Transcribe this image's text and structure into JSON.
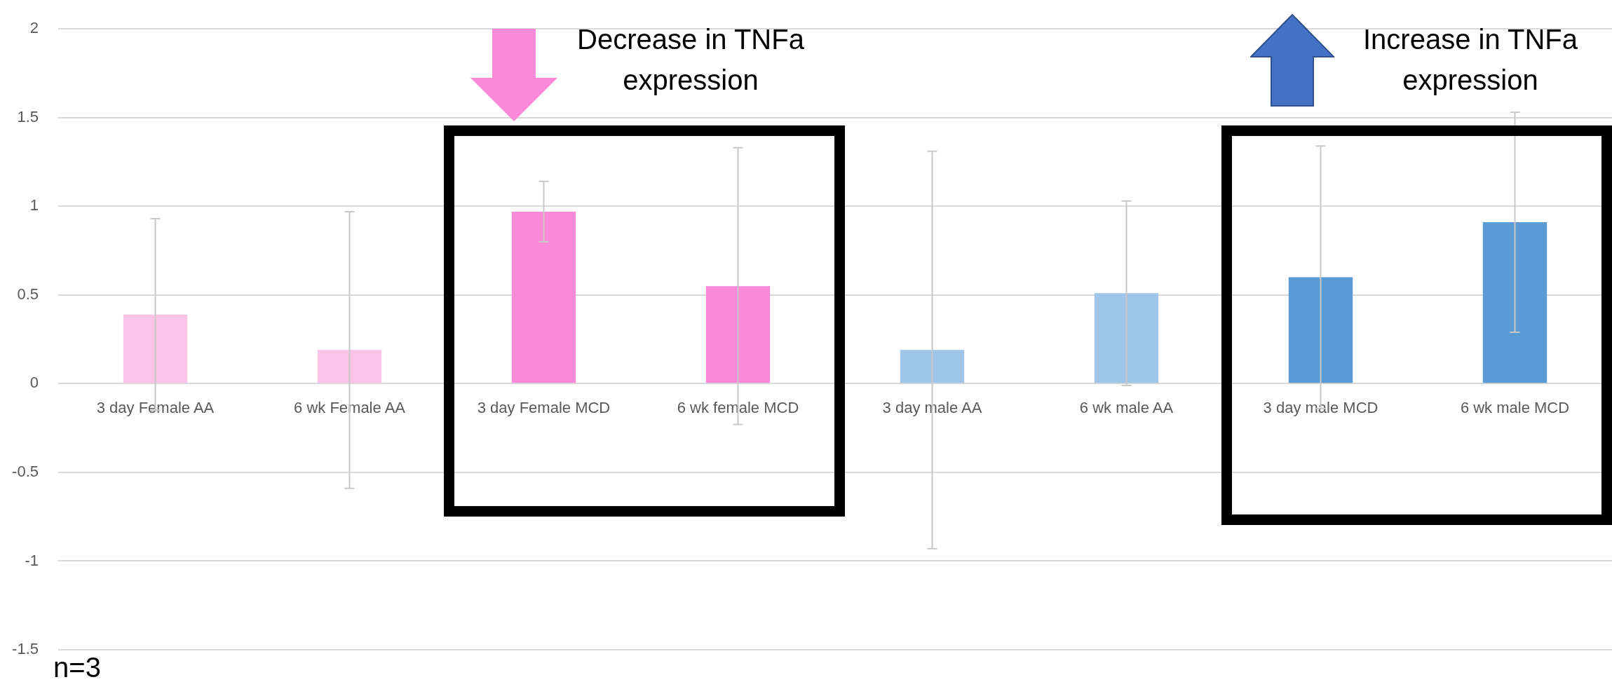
{
  "chart_data": {
    "type": "bar",
    "categories": [
      "3 day Female AA",
      "6 wk Female AA",
      "3 day Female MCD",
      "6 wk female MCD",
      "3 day male AA",
      "6 wk male AA",
      "3 day male MCD",
      "6 wk male MCD"
    ],
    "values": [
      0.39,
      0.19,
      0.97,
      0.55,
      0.19,
      0.51,
      0.6,
      0.91
    ],
    "errors": [
      0.54,
      0.78,
      0.17,
      0.78,
      1.12,
      0.52,
      0.74,
      0.62
    ],
    "colors": [
      "#fcc3e9",
      "#fcc3e9",
      "#fd8ad8",
      "#fd8ad8",
      "#9fc5e8",
      "#9fc5e8",
      "#5b9bd5",
      "#5b9bd5"
    ],
    "ylim": [
      -1.5,
      2
    ],
    "yticks": [
      -1.5,
      -1,
      -0.5,
      0,
      0.5,
      1,
      1.5,
      2
    ],
    "grid": "y",
    "legend": false,
    "annotations": [
      "Decrease in TNFa expression",
      "Increase in TNFa expression",
      "n=3"
    ]
  }
}
